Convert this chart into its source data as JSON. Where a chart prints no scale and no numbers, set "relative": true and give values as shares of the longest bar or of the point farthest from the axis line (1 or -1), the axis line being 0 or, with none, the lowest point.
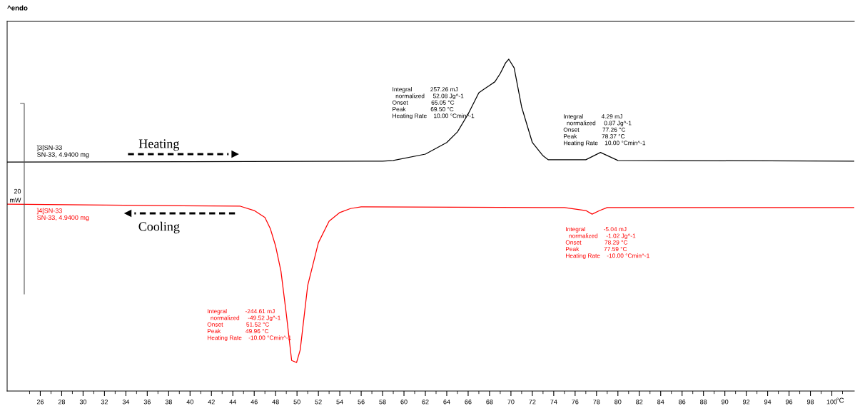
{
  "chart_data": {
    "type": "line",
    "relative": true,
    "xlabel": "°C",
    "xlim": [
      22.9,
      102.1
    ],
    "xticks": [
      {
        "value": 25,
        "label": null
      },
      26,
      {
        "value": 27,
        "label": null
      },
      28,
      {
        "value": 29,
        "label": null
      },
      30,
      {
        "value": 31,
        "label": null
      },
      32,
      {
        "value": 33,
        "label": null
      },
      34,
      {
        "value": 35,
        "label": null
      },
      36,
      {
        "value": 37,
        "label": null
      },
      38,
      {
        "value": 39,
        "label": null
      },
      40,
      {
        "value": 41,
        "label": null
      },
      42,
      {
        "value": 43,
        "label": null
      },
      44,
      {
        "value": 45,
        "label": null
      },
      46,
      {
        "value": 47,
        "label": null
      },
      48,
      {
        "value": 49,
        "label": null
      },
      50,
      {
        "value": 51,
        "label": null
      },
      52,
      {
        "value": 53,
        "label": null
      },
      54,
      {
        "value": 55,
        "label": null
      },
      56,
      {
        "value": 57,
        "label": null
      },
      58,
      {
        "value": 59,
        "label": null
      },
      60,
      {
        "value": 61,
        "label": null
      },
      62,
      {
        "value": 63,
        "label": null
      },
      64,
      {
        "value": 65,
        "label": null
      },
      66,
      {
        "value": 67,
        "label": null
      },
      68,
      {
        "value": 69,
        "label": null
      },
      70,
      {
        "value": 71,
        "label": null
      },
      72,
      {
        "value": 73,
        "label": null
      },
      74,
      {
        "value": 75,
        "label": null
      },
      76,
      {
        "value": 77,
        "label": null
      },
      78,
      {
        "value": 79,
        "label": null
      },
      80,
      {
        "value": 81,
        "label": null
      },
      82,
      {
        "value": 83,
        "label": null
      },
      84,
      {
        "value": 85,
        "label": null
      },
      86,
      {
        "value": 87,
        "label": null
      },
      88,
      {
        "value": 89,
        "label": null
      },
      90,
      {
        "value": 91,
        "label": null
      },
      92,
      {
        "value": 93,
        "label": null
      },
      94,
      {
        "value": 95,
        "label": null
      },
      96,
      {
        "value": 97,
        "label": null
      },
      98,
      {
        "value": 99,
        "label": null
      },
      100,
      {
        "value": 101,
        "label": null
      }
    ],
    "tick_labels": "x",
    "grid": false,
    "legend": false,
    "marker": "none",
    "line_style": "solid",
    "series": [
      {
        "name": "]3[SN-33\nSN-33, 4.9400 mg",
        "color": "#000000",
        "x": [
          22.9,
          40,
          58,
          59,
          62,
          64,
          65,
          66,
          67,
          67.5,
          68,
          68.5,
          69,
          69.5,
          69.8,
          70.3,
          71,
          72,
          73,
          73.5,
          77,
          78.37,
          80,
          102.1
        ],
        "values": [
          0.69,
          0.691,
          0.693,
          0.695,
          0.714,
          0.749,
          0.781,
          0.835,
          0.899,
          0.91,
          0.921,
          0.932,
          0.957,
          0.989,
          1.0,
          0.974,
          0.856,
          0.749,
          0.709,
          0.697,
          0.697,
          0.719,
          0.695,
          0.693
        ]
      },
      {
        "name": "]4[SN-33\nSN-33, 4.9400 mg",
        "color": "#ff0000",
        "x": [
          22.9,
          44.7,
          46,
          47,
          47.5,
          48,
          48.5,
          49,
          49.5,
          49.96,
          50.3,
          51,
          52,
          53,
          54,
          55,
          56,
          75,
          77,
          77.59,
          78.3,
          79,
          102.1
        ],
        "values": [
          0.563,
          0.557,
          0.544,
          0.523,
          0.49,
          0.437,
          0.361,
          0.232,
          0.092,
          0.086,
          0.124,
          0.318,
          0.447,
          0.512,
          0.538,
          0.55,
          0.555,
          0.553,
          0.544,
          0.533,
          0.544,
          0.553,
          0.553
        ]
      }
    ],
    "annotations": [
      "^endo",
      "20\nmW",
      "Heating",
      "Cooling",
      "Integral           257.26 mJ\n  normalized     52.08 Jg^-1\nOnset              65.05 °C\nPeak               69.50 °C\nHeating Rate    10.00 °Cmin^-1",
      "Integral           4.29 mJ\n  normalized     0.87 Jg^-1\nOnset              77.26 °C\nPeak               78.37 °C\nHeating Rate    10.00 °Cmin^-1",
      "Integral           -244.61 mJ\n  normalized     -49.52 Jg^-1\nOnset              51.52 °C\nPeak               49.96 °C\nHeating Rate    -10.00 °Cmin^-1",
      "Integral           -5.04 mJ\n  normalized     -1.02 Jg^-1\nOnset              78.29 °C\nPeak               77.59 °C\nHeating Rate    -10.00 °Cmin^-1"
    ]
  }
}
